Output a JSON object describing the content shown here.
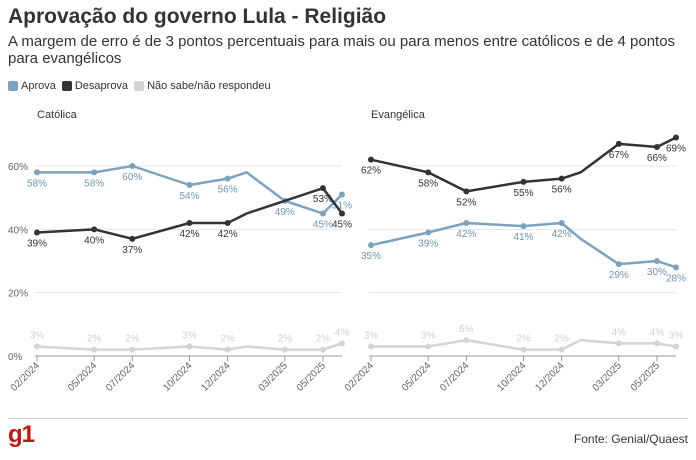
{
  "title": "Aprovação do governo Lula - Religião",
  "subtitle": "A margem de erro é de 3 pontos percentuais para mais ou para menos entre católicos e de 4 pontos para evangélicos",
  "legend": [
    {
      "label": "Aprova",
      "color": "#7ba3c0"
    },
    {
      "label": "Desaprova",
      "color": "#333333"
    },
    {
      "label": "Não sabe/não respondeu",
      "color": "#d4d4d4"
    }
  ],
  "footer": {
    "logo": "g1",
    "source": "Fonte: Genial/Quaest"
  },
  "chart_data": [
    {
      "type": "line",
      "title": "Católica",
      "ylim": [
        0,
        70
      ],
      "yticks": [
        "0%",
        "20%",
        "40%",
        "60%"
      ],
      "x_ticks": [
        "02/2024",
        "05/2024",
        "07/2024",
        "10/2024",
        "12/2024",
        "03/2025",
        "05/2025"
      ],
      "x": [
        "02/2024",
        "05/2024",
        "07/2024",
        "10/2024",
        "12/2024",
        "01/2025",
        "03/2025",
        "04/2025",
        "05/2025",
        "06/2025"
      ],
      "series": [
        {
          "name": "Aprova",
          "color": "#7ba3c0",
          "values": [
            58,
            58,
            60,
            54,
            56,
            58,
            49,
            47,
            45,
            51
          ],
          "labels": [
            "58%",
            "58%",
            "60%",
            "54%",
            "56%",
            null,
            "49%",
            null,
            "45%",
            "51%"
          ]
        },
        {
          "name": "Desaprova",
          "color": "#333333",
          "values": [
            39,
            40,
            37,
            42,
            42,
            45,
            49,
            51,
            53,
            45
          ],
          "labels": [
            "39%",
            "40%",
            "37%",
            "42%",
            "42%",
            null,
            null,
            null,
            "53%",
            "45%"
          ]
        },
        {
          "name": "Não sabe/não respondeu",
          "color": "#d4d4d4",
          "values": [
            3,
            2,
            2,
            3,
            2,
            3,
            2,
            2,
            2,
            4
          ],
          "labels": [
            "3%",
            "2%",
            "2%",
            "3%",
            "2%",
            null,
            "2%",
            null,
            "2%",
            "4%"
          ]
        }
      ]
    },
    {
      "type": "line",
      "title": "Evangélica",
      "ylim": [
        0,
        70
      ],
      "yticks": [],
      "x_ticks": [
        "02/2024",
        "05/2024",
        "07/2024",
        "10/2024",
        "12/2024",
        "03/2025",
        "05/2025"
      ],
      "x": [
        "02/2024",
        "05/2024",
        "07/2024",
        "10/2024",
        "12/2024",
        "01/2025",
        "03/2025",
        "04/2025",
        "05/2025",
        "06/2025"
      ],
      "series": [
        {
          "name": "Aprova",
          "color": "#7ba3c0",
          "values": [
            35,
            39,
            42,
            41,
            42,
            37,
            29,
            29.5,
            30,
            28
          ],
          "labels": [
            "35%",
            "39%",
            "42%",
            "41%",
            "42%",
            null,
            "29%",
            null,
            "30%",
            "28%"
          ]
        },
        {
          "name": "Desaprova",
          "color": "#333333",
          "values": [
            62,
            58,
            52,
            55,
            56,
            58,
            67,
            66.5,
            66,
            69
          ],
          "labels": [
            "62%",
            "58%",
            "52%",
            "55%",
            "56%",
            null,
            "67%",
            null,
            "66%",
            "69%"
          ]
        },
        {
          "name": "Não sabe/não respondeu",
          "color": "#d4d4d4",
          "values": [
            3,
            3,
            5,
            2,
            2,
            5,
            4,
            4,
            4,
            3
          ],
          "labels": [
            "3%",
            "3%",
            "5%",
            "2%",
            "2%",
            null,
            "4%",
            null,
            "4%",
            "3%"
          ]
        }
      ]
    }
  ]
}
